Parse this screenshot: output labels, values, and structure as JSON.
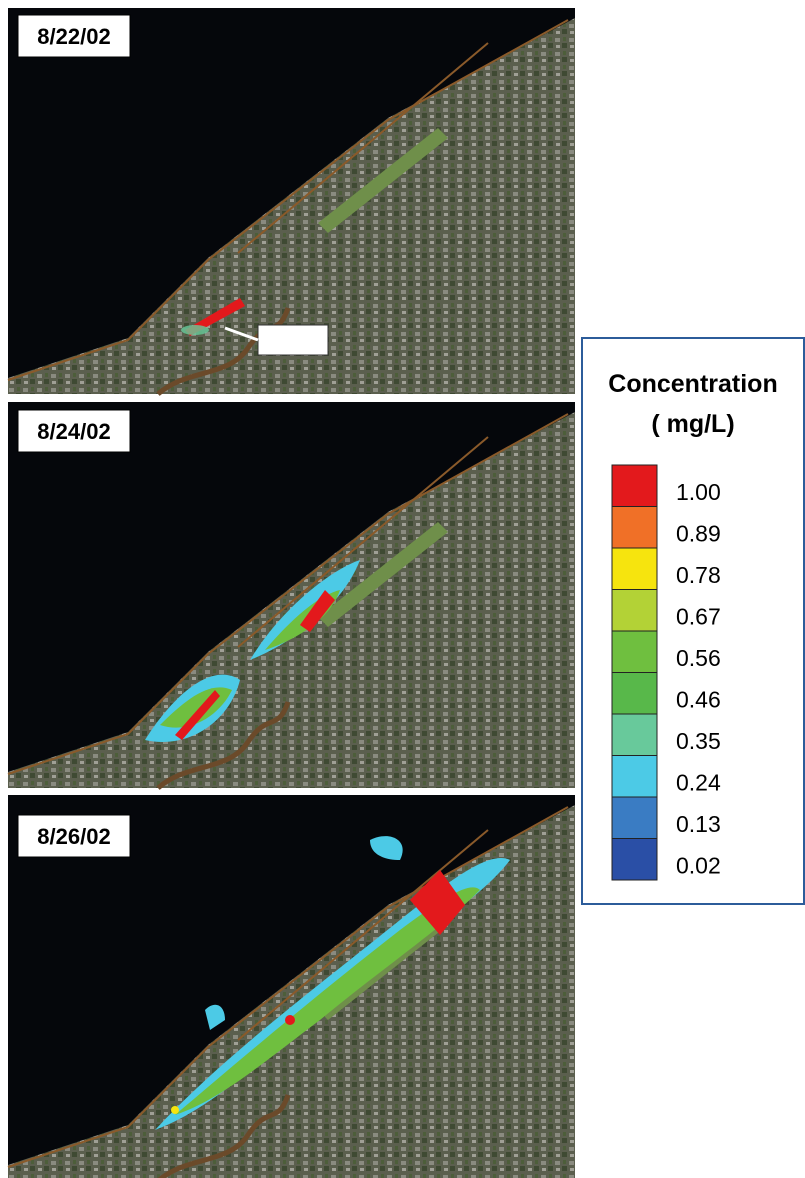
{
  "panels": [
    {
      "label": "8/22/02"
    },
    {
      "label": "8/24/02"
    },
    {
      "label": "8/26/02"
    }
  ],
  "legend": {
    "title": "Concentration",
    "unit": "( mg/L)",
    "entries": [
      {
        "label": "1.00",
        "color": "#e3191c"
      },
      {
        "label": "0.89",
        "color": "#f07027"
      },
      {
        "label": "0.78",
        "color": "#f6e40e"
      },
      {
        "label": "0.67",
        "color": "#b3d236"
      },
      {
        "label": "0.56",
        "color": "#6fbf3f"
      },
      {
        "label": "0.46",
        "color": "#58b84a"
      },
      {
        "label": "0.35",
        "color": "#68c99b"
      },
      {
        "label": "0.24",
        "color": "#4ccae6"
      },
      {
        "label": "0.13",
        "color": "#3a7cc3"
      },
      {
        "label": "0.02",
        "color": "#2a4fa6"
      }
    ]
  }
}
